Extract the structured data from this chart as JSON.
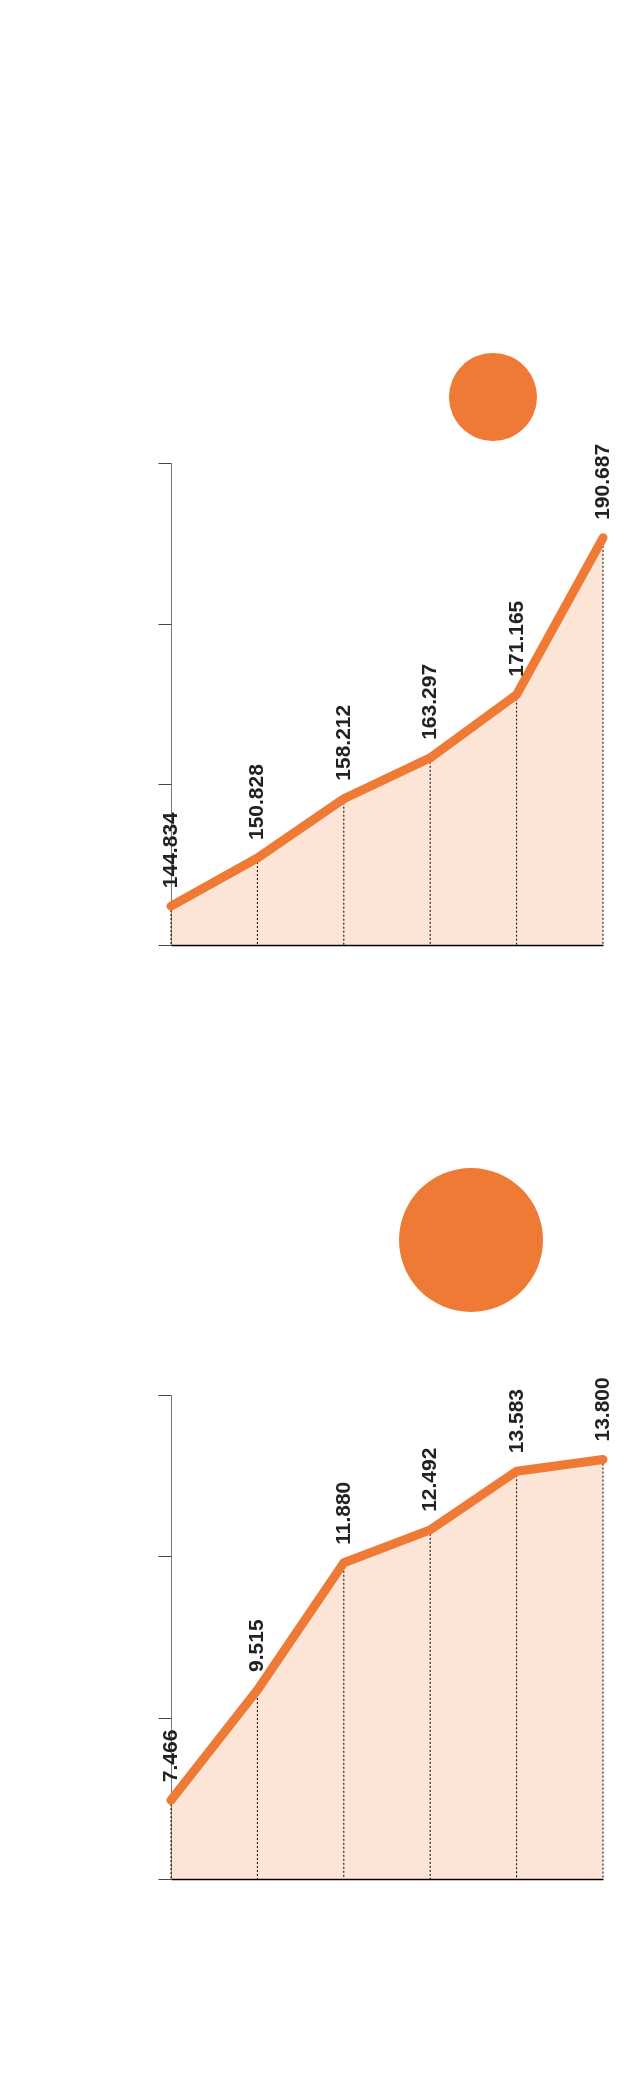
{
  "chart_data": [
    {
      "type": "area",
      "categories": [
        null,
        null,
        null,
        null,
        null,
        null
      ],
      "values": [
        144.834,
        150.828,
        158.212,
        163.297,
        171.165,
        190.687
      ],
      "value_labels": [
        "144.834",
        "150.828",
        "158.212",
        "163.297",
        "171.165",
        "190.687"
      ],
      "color": "#ef7a35",
      "ylim": [
        140,
        200
      ],
      "tick_labels": false
    },
    {
      "type": "area",
      "categories": [
        null,
        null,
        null,
        null,
        null,
        null
      ],
      "values": [
        7.466,
        9.515,
        11.88,
        12.492,
        13.583,
        13.8
      ],
      "value_labels": [
        "7.466",
        "9.515",
        "11.880",
        "12.492",
        "13.583",
        "13.800"
      ],
      "color": "#ef7a35",
      "ylim": [
        6,
        15
      ],
      "tick_labels": false
    }
  ]
}
